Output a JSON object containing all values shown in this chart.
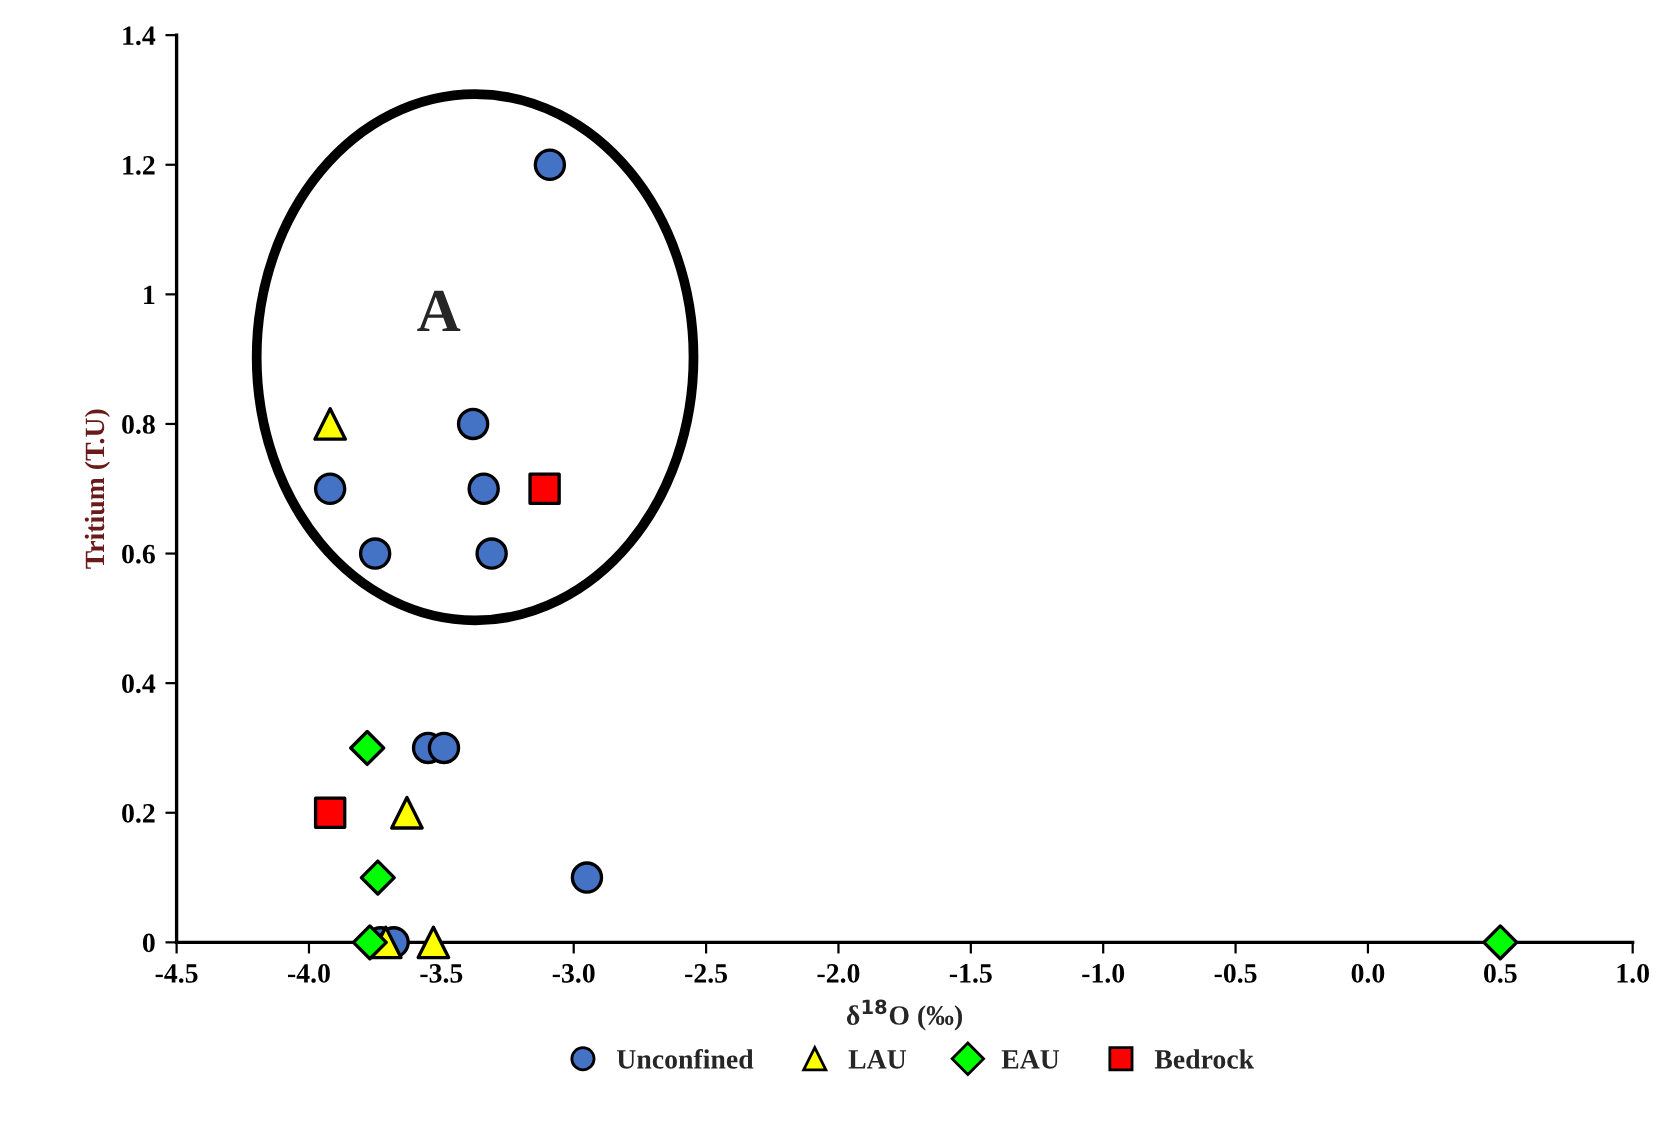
{
  "chart_data": {
    "type": "scatter",
    "xlabel": "δ$^{18}$O (‰)",
    "ylabel": "Tritium (T.U)",
    "annotations": [
      "A"
    ],
    "series": [
      {
        "name": "Unconfined",
        "color": "#4472c4",
        "marker": "circle",
        "x": [
          -3.09,
          -3.38,
          -3.92,
          -3.34,
          -3.75,
          -3.31,
          -3.55,
          -3.49,
          -2.95,
          -3.73,
          -3.68
        ],
        "values": [
          1.2,
          0.8,
          0.7,
          0.7,
          0.6,
          0.6,
          0.3,
          0.3,
          0.1,
          0,
          0
        ]
      },
      {
        "name": "LAU",
        "color": "#ffff00",
        "marker": "triangle",
        "x": [
          -3.92,
          -3.63,
          -3.71,
          -3.53
        ],
        "values": [
          0.8,
          0.2,
          0,
          0
        ]
      },
      {
        "name": "EAU",
        "color": "#00ff00",
        "marker": "diamond",
        "x": [
          -3.78,
          -3.74,
          -3.77,
          0.5
        ],
        "values": [
          0.3,
          0.1,
          0,
          0
        ]
      },
      {
        "name": "Bedrock",
        "color": "#ff0000",
        "marker": "square",
        "x": [
          -3.11,
          -3.92
        ],
        "values": [
          0.7,
          0.2
        ]
      }
    ],
    "xlim": [
      -4.5,
      1.0
    ],
    "ylim": [
      0,
      1.4
    ],
    "xticks": [
      -4.5,
      {
        "value": -4.0,
        "label": "-4.0"
      },
      -3.5,
      {
        "value": -3.0,
        "label": "-3.0"
      },
      -2.5,
      {
        "value": -2.0,
        "label": "-2.0"
      },
      -1.5,
      {
        "value": -1.0,
        "label": "-1.0"
      },
      -0.5,
      {
        "value": 0.0,
        "label": "0.0"
      },
      0.5,
      {
        "value": 1.0,
        "label": "1.0"
      }
    ],
    "yticks": [
      0,
      0.2,
      0.4,
      0.6,
      0.8,
      1,
      1.2,
      1.4
    ],
    "grid": false,
    "legend": "bottom"
  }
}
